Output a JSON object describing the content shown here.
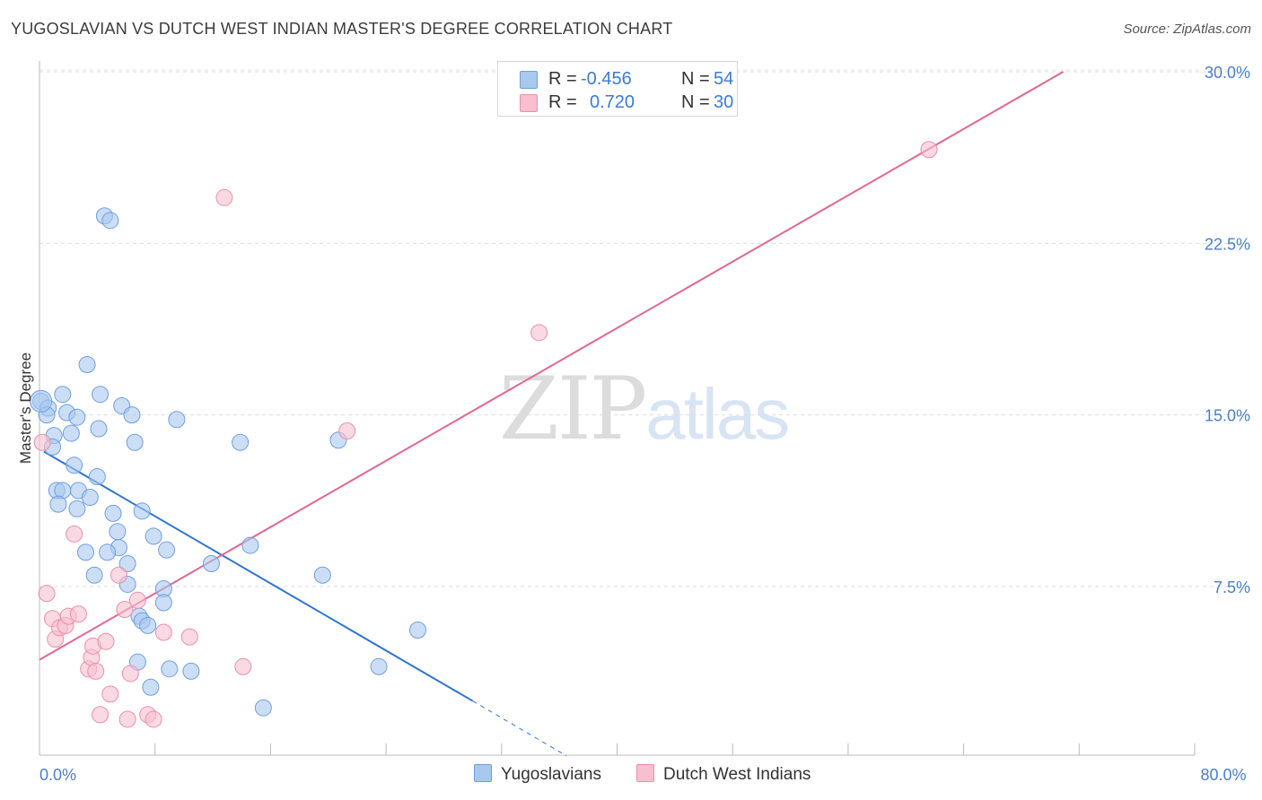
{
  "title": "YUGOSLAVIAN VS DUTCH WEST INDIAN MASTER'S DEGREE CORRELATION CHART",
  "source": "Source: ZipAtlas.com",
  "watermark": {
    "zip": "ZIP",
    "atlas": "atlas"
  },
  "legend_top": {
    "rows": [
      {
        "r_label": "R =",
        "r_value": "-0.456",
        "n_label": "N =",
        "n_value": "54",
        "color": "#a9c8ee",
        "border": "#6f9ee0"
      },
      {
        "r_label": "R =",
        "r_value": "0.720",
        "n_label": "N =",
        "n_value": "30",
        "color": "#f7bfd0",
        "border": "#ea8fab"
      }
    ]
  },
  "legend_bottom": [
    {
      "label": "Yugoslavians",
      "color": "#a9c8ee",
      "border": "#6f9ee0"
    },
    {
      "label": "Dutch West Indians",
      "color": "#f7bfd0",
      "border": "#ea8fab"
    }
  ],
  "chart_data": {
    "type": "scatter",
    "title": "YUGOSLAVIAN VS DUTCH WEST INDIAN MASTER'S DEGREE CORRELATION CHART",
    "xlabel": "",
    "ylabel": "Master's Degree",
    "xlim": [
      0,
      80
    ],
    "ylim": [
      0,
      30.5
    ],
    "x_tick_labels": [
      {
        "value": 0,
        "label": "0.0%"
      },
      {
        "value": 80,
        "label": "80.0%"
      }
    ],
    "x_minor_ticks": [
      8,
      16,
      24,
      32,
      40,
      48,
      56,
      64,
      72,
      80
    ],
    "y_ticks": [
      {
        "value": 7.5,
        "label": "7.5%"
      },
      {
        "value": 15,
        "label": "15.0%"
      },
      {
        "value": 22.5,
        "label": "22.5%"
      },
      {
        "value": 30,
        "label": "30.0%"
      }
    ],
    "grid": true,
    "series": [
      {
        "name": "Yugoslavians",
        "color": "#a9c8ee",
        "stroke": "#6f9ee0",
        "line_color": "#2f74d0",
        "trend": {
          "x0": 0.3,
          "y0": 13.4,
          "x1": 30,
          "y1": 2.5,
          "dash_to_x": 36.5,
          "dash_to_y": 0.1
        },
        "points": [
          [
            0.1,
            15.6
          ],
          [
            0.6,
            15.3
          ],
          [
            0.5,
            15.0
          ],
          [
            1.0,
            14.1
          ],
          [
            0.9,
            13.6
          ],
          [
            1.6,
            15.9
          ],
          [
            1.9,
            15.1
          ],
          [
            2.6,
            14.9
          ],
          [
            2.2,
            14.2
          ],
          [
            2.4,
            12.8
          ],
          [
            3.3,
            17.2
          ],
          [
            4.2,
            15.9
          ],
          [
            4.1,
            14.4
          ],
          [
            5.7,
            15.4
          ],
          [
            6.4,
            15.0
          ],
          [
            6.6,
            13.8
          ],
          [
            9.5,
            14.8
          ],
          [
            13.9,
            13.8
          ],
          [
            20.7,
            13.9
          ],
          [
            4.5,
            23.7
          ],
          [
            4.9,
            23.5
          ],
          [
            1.2,
            11.7
          ],
          [
            1.6,
            11.7
          ],
          [
            2.7,
            11.7
          ],
          [
            1.3,
            11.1
          ],
          [
            2.6,
            10.9
          ],
          [
            3.5,
            11.4
          ],
          [
            4.0,
            12.3
          ],
          [
            5.1,
            10.7
          ],
          [
            7.1,
            10.8
          ],
          [
            5.4,
            9.9
          ],
          [
            7.9,
            9.7
          ],
          [
            5.5,
            9.2
          ],
          [
            3.2,
            9.0
          ],
          [
            4.7,
            9.0
          ],
          [
            8.8,
            9.1
          ],
          [
            6.1,
            8.5
          ],
          [
            11.9,
            8.5
          ],
          [
            14.6,
            9.3
          ],
          [
            3.8,
            8.0
          ],
          [
            6.1,
            7.6
          ],
          [
            8.6,
            7.4
          ],
          [
            19.6,
            8.0
          ],
          [
            8.6,
            6.8
          ],
          [
            6.9,
            6.2
          ],
          [
            7.1,
            6.0
          ],
          [
            7.5,
            5.8
          ],
          [
            26.2,
            5.6
          ],
          [
            6.8,
            4.2
          ],
          [
            9.0,
            3.9
          ],
          [
            10.5,
            3.8
          ],
          [
            23.5,
            4.0
          ],
          [
            7.7,
            3.1
          ],
          [
            15.5,
            2.2
          ]
        ]
      },
      {
        "name": "Dutch West Indians",
        "color": "#f7bfd0",
        "stroke": "#ea8fab",
        "line_color": "#e06890",
        "trend": {
          "x0": 0,
          "y0": 4.3,
          "x1": 70.9,
          "y1": 30.0
        },
        "points": [
          [
            0.2,
            13.8
          ],
          [
            0.5,
            7.2
          ],
          [
            0.9,
            6.1
          ],
          [
            1.1,
            5.2
          ],
          [
            1.4,
            5.7
          ],
          [
            1.8,
            5.8
          ],
          [
            2.0,
            6.2
          ],
          [
            2.4,
            9.8
          ],
          [
            2.7,
            6.3
          ],
          [
            3.4,
            3.9
          ],
          [
            3.6,
            4.4
          ],
          [
            3.7,
            4.9
          ],
          [
            3.9,
            3.8
          ],
          [
            4.2,
            1.9
          ],
          [
            4.6,
            5.1
          ],
          [
            4.9,
            2.8
          ],
          [
            5.5,
            8.0
          ],
          [
            5.9,
            6.5
          ],
          [
            6.1,
            1.7
          ],
          [
            6.3,
            3.7
          ],
          [
            6.8,
            6.9
          ],
          [
            7.5,
            1.9
          ],
          [
            7.9,
            1.7
          ],
          [
            8.6,
            5.5
          ],
          [
            10.4,
            5.3
          ],
          [
            12.8,
            24.5
          ],
          [
            14.1,
            4.0
          ],
          [
            21.3,
            14.3
          ],
          [
            34.6,
            18.6
          ],
          [
            61.6,
            26.6
          ]
        ]
      }
    ]
  }
}
